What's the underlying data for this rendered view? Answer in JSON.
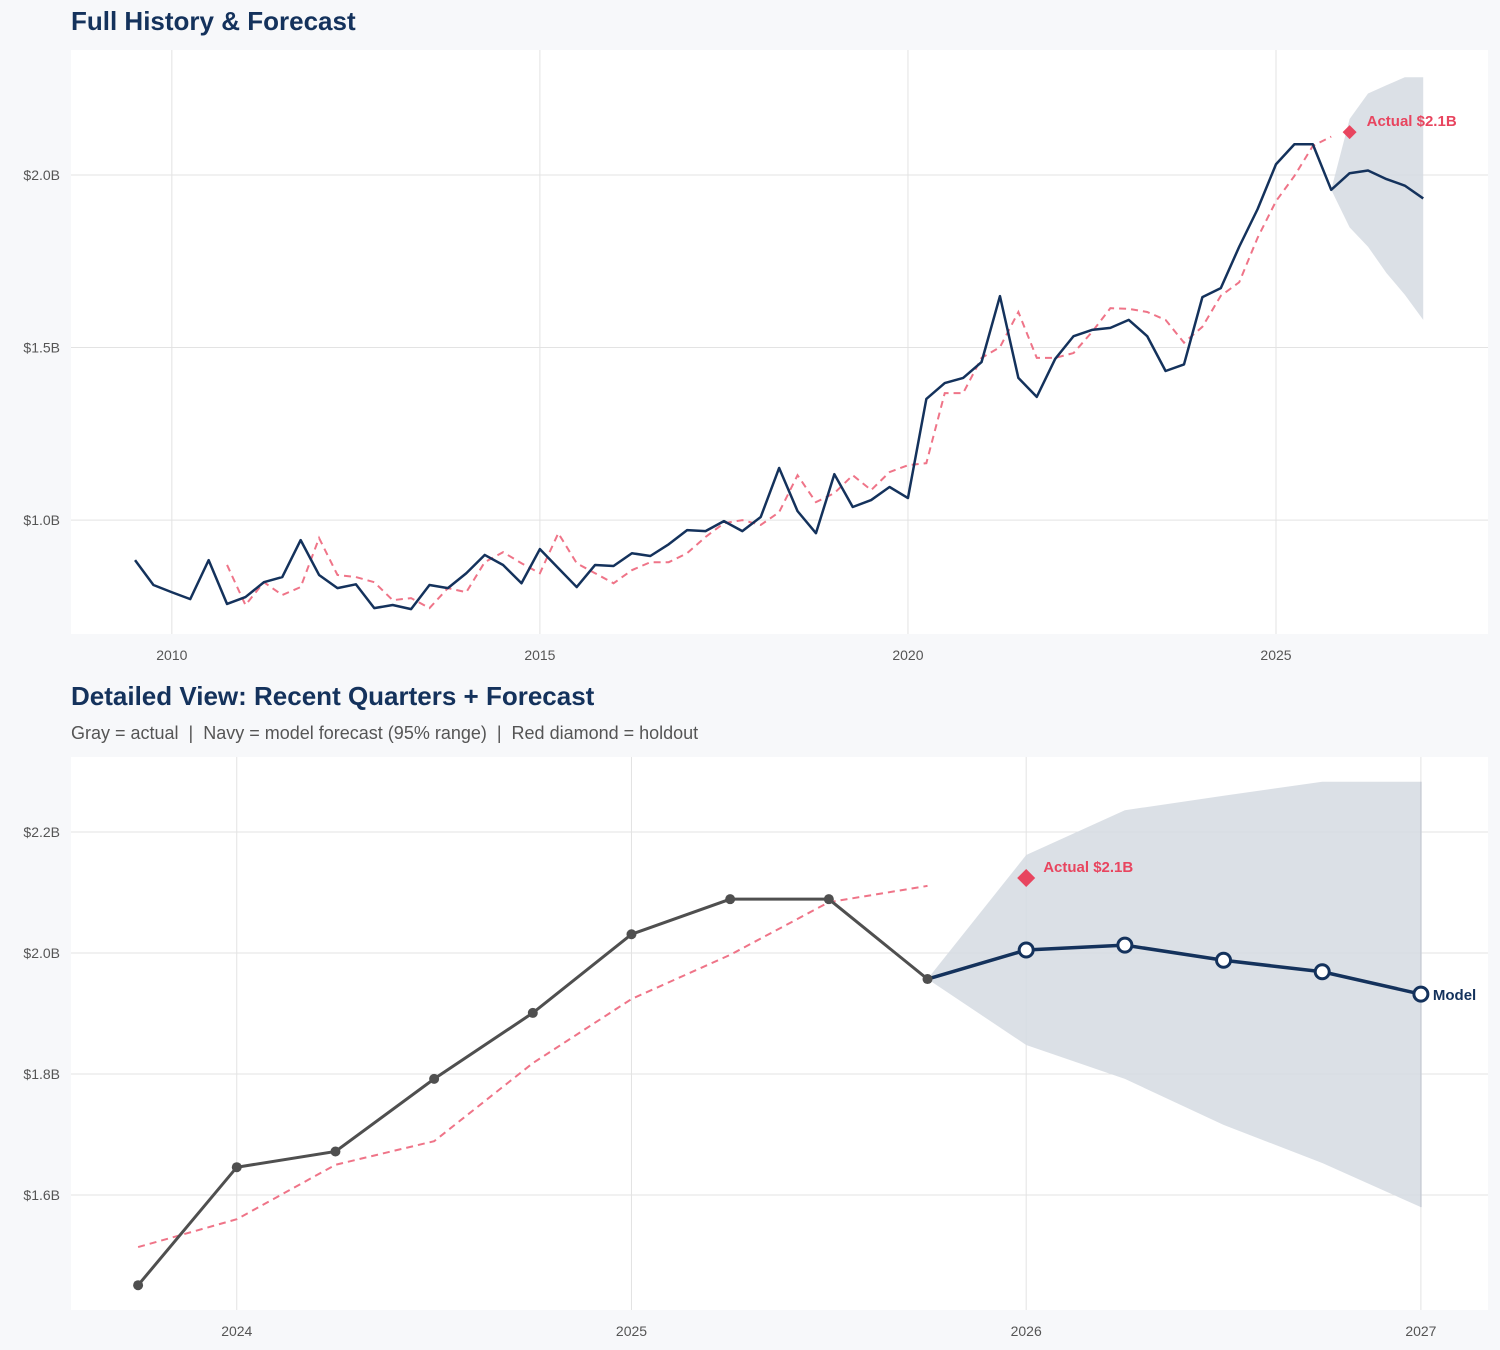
{
  "colors": {
    "navy": "#14325c",
    "red": "#e8455f",
    "gray": "#4f4f4f",
    "band": "#d5dae2",
    "grid": "#e3e3e3",
    "background": "#f7f8fa"
  },
  "chart_data": [
    {
      "type": "line",
      "title": "Full History & Forecast",
      "xlim": [
        2008.63,
        2027.88
      ],
      "ylim": [
        0.67,
        2.362
      ],
      "grid": true,
      "x_ticks": [
        2010,
        2015,
        2020,
        2025
      ],
      "x_tick_labels": [
        "2010",
        "2015",
        "2020",
        "2025"
      ],
      "y_ticks": [
        1.0,
        1.5,
        2.0
      ],
      "y_tick_labels": [
        "$1.0B",
        "$1.5B",
        "$2.0B"
      ],
      "actual": {
        "x": [
          2009.5,
          2009.75,
          2010,
          2010.25,
          2010.5,
          2010.75,
          2011,
          2011.25,
          2011.5,
          2011.75,
          2012,
          2012.25,
          2012.5,
          2012.75,
          2013,
          2013.25,
          2013.5,
          2013.75,
          2014,
          2014.25,
          2014.5,
          2014.75,
          2015,
          2015.25,
          2015.5,
          2015.75,
          2016,
          2016.25,
          2016.5,
          2016.75,
          2017,
          2017.25,
          2017.5,
          2017.75,
          2018,
          2018.25,
          2018.5,
          2018.75,
          2019,
          2019.25,
          2019.5,
          2019.75,
          2020,
          2020.25,
          2020.5,
          2020.75,
          2021,
          2021.25,
          2021.5,
          2021.75,
          2022,
          2022.25,
          2022.5,
          2022.75,
          2023,
          2023.25,
          2023.5,
          2023.75,
          2024,
          2024.25,
          2024.5,
          2024.75,
          2025,
          2025.25,
          2025.5,
          2025.75
        ],
        "values": [
          0.884,
          0.812,
          0.791,
          0.771,
          0.884,
          0.757,
          0.777,
          0.82,
          0.835,
          0.942,
          0.841,
          0.803,
          0.814,
          0.745,
          0.754,
          0.742,
          0.812,
          0.803,
          0.846,
          0.899,
          0.87,
          0.817,
          0.916,
          0.861,
          0.806,
          0.87,
          0.867,
          0.904,
          0.896,
          0.93,
          0.971,
          0.968,
          0.997,
          0.968,
          1.009,
          1.151,
          1.026,
          0.962,
          1.133,
          1.038,
          1.058,
          1.096,
          1.064,
          1.351,
          1.397,
          1.412,
          1.458,
          1.649,
          1.412,
          1.357,
          1.467,
          1.533,
          1.551,
          1.557,
          1.58,
          1.533,
          1.432,
          1.451,
          1.646,
          1.672,
          1.792,
          1.901,
          2.031,
          2.089,
          2.089,
          1.957
        ]
      },
      "fitted": {
        "x": [
          2010.75,
          2011,
          2011.25,
          2011.5,
          2011.75,
          2012,
          2012.25,
          2012.5,
          2012.75,
          2013,
          2013.25,
          2013.5,
          2013.75,
          2014,
          2014.25,
          2014.5,
          2014.75,
          2015,
          2015.25,
          2015.5,
          2015.75,
          2016,
          2016.25,
          2016.5,
          2016.75,
          2017,
          2017.25,
          2017.5,
          2017.75,
          2018,
          2018.25,
          2018.5,
          2018.75,
          2019,
          2019.25,
          2019.5,
          2019.75,
          2020,
          2020.25,
          2020.5,
          2020.75,
          2021,
          2021.25,
          2021.5,
          2021.75,
          2022,
          2022.25,
          2022.5,
          2022.75,
          2023,
          2023.25,
          2023.5,
          2023.75,
          2024,
          2024.25,
          2024.5,
          2024.75,
          2025,
          2025.25,
          2025.5,
          2025.75
        ],
        "values": [
          0.87,
          0.754,
          0.82,
          0.783,
          0.806,
          0.948,
          0.841,
          0.835,
          0.82,
          0.768,
          0.774,
          0.745,
          0.803,
          0.791,
          0.878,
          0.907,
          0.875,
          0.846,
          0.962,
          0.875,
          0.846,
          0.817,
          0.855,
          0.878,
          0.878,
          0.904,
          0.951,
          0.991,
          1.0,
          0.986,
          1.023,
          1.13,
          1.052,
          1.078,
          1.13,
          1.087,
          1.139,
          1.159,
          1.165,
          1.368,
          1.368,
          1.47,
          1.501,
          1.603,
          1.47,
          1.47,
          1.484,
          1.545,
          1.614,
          1.612,
          1.603,
          1.58,
          1.514,
          1.56,
          1.65,
          1.689,
          1.818,
          1.924,
          1.997,
          2.084,
          2.111
        ]
      },
      "forecast": {
        "x": [
          2025.75,
          2026,
          2026.25,
          2026.5,
          2026.75,
          2027
        ],
        "values": [
          1.957,
          2.005,
          2.013,
          1.988,
          1.969,
          1.932
        ],
        "lower": [
          1.957,
          1.848,
          1.792,
          1.716,
          1.653,
          1.58
        ],
        "upper": [
          1.957,
          2.162,
          2.236,
          2.26,
          2.283,
          2.283
        ]
      },
      "holdout": {
        "x": 2026.0,
        "value": 2.124,
        "label": "Actual $2.1B"
      }
    },
    {
      "type": "line",
      "title": "Detailed View: Recent Quarters + Forecast",
      "subtitle": "Gray = actual  |  Navy = model forecast (95% range)  |  Red diamond = holdout",
      "xlim": [
        2023.58,
        2027.17
      ],
      "ylim": [
        1.41,
        2.324
      ],
      "grid": true,
      "x_ticks": [
        2024,
        2025,
        2026,
        2027
      ],
      "x_tick_labels": [
        "2024",
        "2025",
        "2026",
        "2027"
      ],
      "y_ticks": [
        1.6,
        1.8,
        2.0,
        2.2
      ],
      "y_tick_labels": [
        "$1.6B",
        "$1.8B",
        "$2.0B",
        "$2.2B"
      ],
      "actual": {
        "x": [
          2023.75,
          2024,
          2024.25,
          2024.5,
          2024.75,
          2025,
          2025.25,
          2025.5,
          2025.75
        ],
        "values": [
          1.451,
          1.646,
          1.672,
          1.792,
          1.901,
          2.031,
          2.089,
          2.089,
          1.957
        ]
      },
      "fitted": {
        "x": [
          2023.75,
          2024,
          2024.25,
          2024.5,
          2024.75,
          2025,
          2025.25,
          2025.5,
          2025.75
        ],
        "values": [
          1.514,
          1.56,
          1.65,
          1.689,
          1.818,
          1.924,
          1.997,
          2.084,
          2.111
        ]
      },
      "forecast": {
        "x": [
          2025.75,
          2026,
          2026.25,
          2026.5,
          2026.75,
          2027
        ],
        "values": [
          1.957,
          2.005,
          2.013,
          1.988,
          1.969,
          1.932
        ],
        "lower": [
          1.957,
          1.848,
          1.792,
          1.716,
          1.653,
          1.58
        ],
        "upper": [
          1.957,
          2.162,
          2.236,
          2.26,
          2.283,
          2.283
        ],
        "label": "Model"
      },
      "holdout": {
        "x": 2026.0,
        "value": 2.124,
        "label": "Actual $2.1B"
      }
    }
  ]
}
